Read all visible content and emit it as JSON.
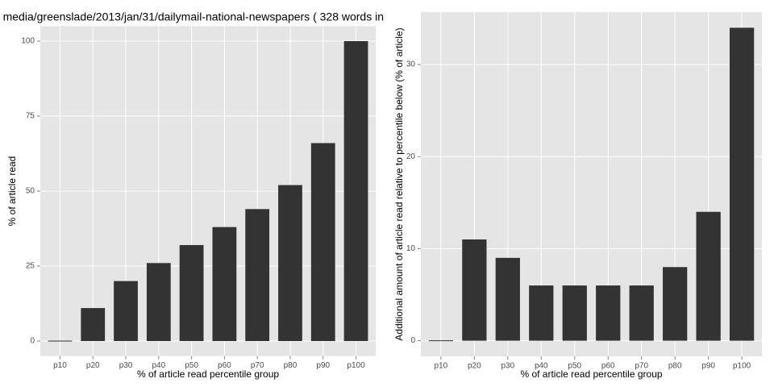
{
  "chart_data": [
    {
      "type": "bar",
      "title": "media/greenslade/2013/jan/31/dailymail-national-newspapers ( 328 words in",
      "categories": [
        "p10",
        "p20",
        "p30",
        "p40",
        "p50",
        "p60",
        "p70",
        "p80",
        "p90",
        "p100"
      ],
      "values": [
        0,
        11,
        20,
        26,
        32,
        38,
        44,
        52,
        66,
        100
      ],
      "color": "#333333",
      "x_label": "% of article read percentile group",
      "y_label": "% of article read",
      "ylim": [
        -5,
        105
      ],
      "yticks": [
        0,
        25,
        50,
        75,
        100
      ],
      "grid": true
    },
    {
      "type": "bar",
      "categories": [
        "p10",
        "p20",
        "p30",
        "p40",
        "p50",
        "p60",
        "p70",
        "p80",
        "p90",
        "p100"
      ],
      "values": [
        0,
        11,
        9,
        6,
        6,
        6,
        6,
        8,
        14,
        34
      ],
      "color": "#333333",
      "x_label": "% of article read percentile group",
      "y_label": "Additional amount of article read relative to percentile below (% of article)",
      "ylim": [
        -1.7,
        35.7
      ],
      "yticks": [
        0,
        10,
        20,
        30
      ],
      "grid": true
    }
  ]
}
